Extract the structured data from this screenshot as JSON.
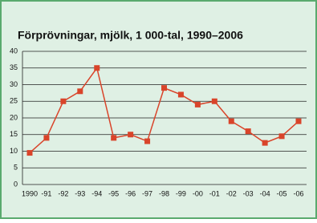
{
  "chart_data": {
    "type": "line",
    "title": "Förprövningar, mjölk, 1 000-tal, 1990–2006",
    "categories": [
      "1990",
      "-91",
      "-92",
      "-93",
      "-94",
      "-95",
      "-96",
      "-97",
      "-98",
      "-99",
      "-00",
      "-01",
      "-02",
      "-03",
      "-04",
      "-05",
      "-06"
    ],
    "series": [
      {
        "name": "Förprövningar",
        "color": "#d9442a",
        "values": [
          9.5,
          14,
          25,
          28,
          35,
          14,
          15,
          13,
          29,
          27,
          24,
          25,
          19,
          16,
          12.5,
          14.5,
          19
        ]
      }
    ],
    "ylim": [
      0,
      40
    ],
    "yticks": [
      0,
      5,
      10,
      15,
      20,
      25,
      30,
      35,
      40
    ],
    "grid": true
  }
}
